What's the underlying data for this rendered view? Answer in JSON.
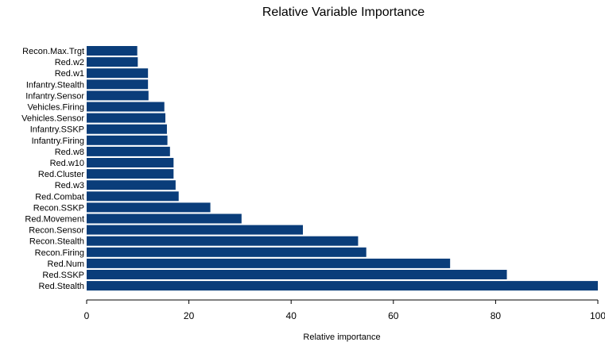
{
  "chart_data": {
    "type": "bar",
    "orientation": "horizontal",
    "title": "Relative Variable Importance",
    "xlabel": "Relative importance",
    "ylabel": "",
    "xlim": [
      0,
      100
    ],
    "xticks": [
      0,
      20,
      40,
      60,
      80,
      100
    ],
    "grid": false,
    "legend": "none",
    "bar_color": "#0a3d7a",
    "categories": [
      "Recon.Max.Trgt",
      "Red.w2",
      "Red.w1",
      "Infantry.Stealth",
      "Infantry.Sensor",
      "Vehicles.Firing",
      "Vehicles.Sensor",
      "Infantry.SSKP",
      "Infantry.Firing",
      "Red.w8",
      "Red.w10",
      "Red.Cluster",
      "Red.w3",
      "Red.Combat",
      "Recon.SSKP",
      "Red.Movement",
      "Recon.Sensor",
      "Recon.Stealth",
      "Recon.Firing",
      "Red.Num",
      "Red.SSKP",
      "Red.Stealth"
    ],
    "values": [
      9.9,
      10.0,
      12.0,
      12.0,
      12.1,
      15.2,
      15.4,
      15.7,
      15.8,
      16.3,
      17.0,
      17.0,
      17.4,
      18.0,
      24.2,
      30.3,
      42.3,
      53.1,
      54.7,
      71.1,
      82.2,
      100.0
    ]
  }
}
